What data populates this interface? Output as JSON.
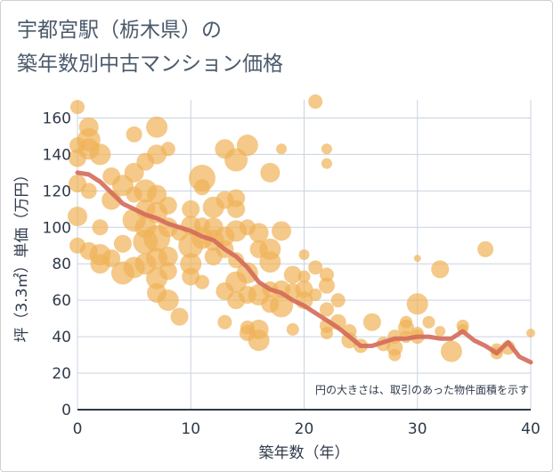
{
  "chart_data": {
    "type": "scatter",
    "title_lines": [
      "宇都宮駅（栃木県）の",
      "築年数別中古マンション価格"
    ],
    "xlabel": "築年数（年）",
    "ylabel": "坪（3.3㎡）単価（万円）",
    "note": "円の大きさは、取引のあった物件面積を示す",
    "xlim": [
      0,
      40
    ],
    "ylim": [
      0,
      170
    ],
    "x_ticks": [
      0,
      10,
      20,
      30,
      40
    ],
    "y_ticks": [
      0,
      20,
      40,
      60,
      80,
      100,
      120,
      140,
      160
    ],
    "grid": true,
    "colors": {
      "bubble": "#f0b257",
      "trend": "#d46a5a",
      "grid": "#c9d3df",
      "axis": "#2f3a4a"
    },
    "points": [
      [
        0,
        166,
        8
      ],
      [
        0,
        145,
        9
      ],
      [
        0,
        138,
        10
      ],
      [
        0,
        124,
        10
      ],
      [
        0,
        106,
        11
      ],
      [
        0,
        90,
        9
      ],
      [
        1,
        155,
        11
      ],
      [
        1,
        148,
        13
      ],
      [
        1,
        143,
        12
      ],
      [
        1,
        120,
        9
      ],
      [
        1,
        87,
        10
      ],
      [
        2,
        140,
        12
      ],
      [
        2,
        85,
        12
      ],
      [
        2,
        80,
        11
      ],
      [
        2,
        100,
        9
      ],
      [
        3,
        128,
        10
      ],
      [
        3,
        115,
        11
      ],
      [
        3,
        83,
        10
      ],
      [
        4,
        123,
        12
      ],
      [
        4,
        91,
        10
      ],
      [
        4,
        75,
        13
      ],
      [
        5,
        151,
        9
      ],
      [
        5,
        130,
        11
      ],
      [
        5,
        118,
        9
      ],
      [
        5,
        104,
        13
      ],
      [
        5,
        78,
        12
      ],
      [
        6,
        136,
        10
      ],
      [
        6,
        120,
        13
      ],
      [
        6,
        110,
        11
      ],
      [
        6,
        100,
        12
      ],
      [
        6,
        92,
        14
      ],
      [
        6,
        80,
        12
      ],
      [
        7,
        155,
        12
      ],
      [
        7,
        140,
        11
      ],
      [
        7,
        118,
        11
      ],
      [
        7,
        108,
        12
      ],
      [
        7,
        94,
        15
      ],
      [
        7,
        83,
        12
      ],
      [
        7,
        72,
        12
      ],
      [
        7,
        64,
        11
      ],
      [
        8,
        143,
        8
      ],
      [
        8,
        112,
        10
      ],
      [
        8,
        100,
        11
      ],
      [
        8,
        84,
        11
      ],
      [
        8,
        76,
        10
      ],
      [
        8,
        60,
        12
      ],
      [
        9,
        97,
        9
      ],
      [
        9,
        51,
        10
      ],
      [
        10,
        110,
        10
      ],
      [
        10,
        101,
        11
      ],
      [
        10,
        90,
        14
      ],
      [
        10,
        80,
        12
      ],
      [
        10,
        73,
        10
      ],
      [
        11,
        127,
        15
      ],
      [
        11,
        122,
        9
      ],
      [
        11,
        101,
        9
      ],
      [
        11,
        94,
        12
      ],
      [
        11,
        70,
        8
      ],
      [
        12,
        111,
        12
      ],
      [
        12,
        100,
        11
      ],
      [
        12,
        93,
        12
      ],
      [
        12,
        84,
        10
      ],
      [
        13,
        143,
        11
      ],
      [
        13,
        115,
        10
      ],
      [
        13,
        95,
        11
      ],
      [
        13,
        88,
        10
      ],
      [
        13,
        65,
        10
      ],
      [
        13,
        48,
        8
      ],
      [
        14,
        137,
        13
      ],
      [
        14,
        116,
        10
      ],
      [
        14,
        110,
        10
      ],
      [
        14,
        98,
        12
      ],
      [
        14,
        82,
        9
      ],
      [
        14,
        70,
        12
      ],
      [
        14,
        60,
        10
      ],
      [
        15,
        145,
        12
      ],
      [
        15,
        100,
        9
      ],
      [
        15,
        75,
        12
      ],
      [
        15,
        63,
        10
      ],
      [
        15,
        45,
        8
      ],
      [
        15,
        42,
        9
      ],
      [
        16,
        97,
        11
      ],
      [
        16,
        88,
        10
      ],
      [
        16,
        63,
        12
      ],
      [
        16,
        44,
        11
      ],
      [
        16,
        38,
        12
      ],
      [
        17,
        130,
        11
      ],
      [
        17,
        88,
        12
      ],
      [
        17,
        81,
        12
      ],
      [
        17,
        66,
        9
      ],
      [
        17,
        58,
        10
      ],
      [
        18,
        143,
        6
      ],
      [
        18,
        98,
        11
      ],
      [
        18,
        66,
        10
      ],
      [
        18,
        57,
        13
      ],
      [
        19,
        74,
        10
      ],
      [
        19,
        65,
        9
      ],
      [
        19,
        44,
        7
      ],
      [
        20,
        85,
        6
      ],
      [
        20,
        73,
        7
      ],
      [
        20,
        66,
        10
      ],
      [
        20,
        60,
        10
      ],
      [
        21,
        169,
        8
      ],
      [
        21,
        78,
        8
      ],
      [
        21,
        63,
        7
      ],
      [
        22,
        143,
        6
      ],
      [
        22,
        135,
        6
      ],
      [
        22,
        74,
        8
      ],
      [
        22,
        68,
        9
      ],
      [
        22,
        55,
        8
      ],
      [
        22,
        46,
        8
      ],
      [
        22,
        42,
        7
      ],
      [
        23,
        60,
        8
      ],
      [
        23,
        48,
        9
      ],
      [
        24,
        43,
        8
      ],
      [
        24,
        38,
        9
      ],
      [
        25,
        35,
        8
      ],
      [
        26,
        48,
        10
      ],
      [
        27,
        36,
        8
      ],
      [
        28,
        40,
        8
      ],
      [
        28,
        34,
        9
      ],
      [
        28,
        30,
        7
      ],
      [
        29,
        48,
        7
      ],
      [
        29,
        45,
        9
      ],
      [
        29,
        40,
        7
      ],
      [
        30,
        83,
        4
      ],
      [
        30,
        58,
        12
      ],
      [
        30,
        42,
        7
      ],
      [
        30,
        40,
        8
      ],
      [
        31,
        48,
        7
      ],
      [
        32,
        77,
        10
      ],
      [
        32,
        43,
        6
      ],
      [
        33,
        32,
        12
      ],
      [
        34,
        46,
        7
      ],
      [
        34,
        44,
        6
      ],
      [
        36,
        88,
        9
      ],
      [
        37,
        31,
        7
      ],
      [
        37,
        33,
        7
      ],
      [
        38,
        34,
        8
      ],
      [
        40,
        42,
        5
      ]
    ],
    "trend": [
      [
        0,
        130
      ],
      [
        1,
        129
      ],
      [
        2,
        125
      ],
      [
        3,
        119
      ],
      [
        4,
        113
      ],
      [
        5,
        110
      ],
      [
        6,
        107
      ],
      [
        7,
        105
      ],
      [
        8,
        102
      ],
      [
        9,
        100
      ],
      [
        10,
        98
      ],
      [
        11,
        95
      ],
      [
        12,
        93
      ],
      [
        13,
        88
      ],
      [
        14,
        84
      ],
      [
        15,
        78
      ],
      [
        16,
        70
      ],
      [
        17,
        66
      ],
      [
        18,
        64
      ],
      [
        19,
        60
      ],
      [
        20,
        57
      ],
      [
        21,
        53
      ],
      [
        22,
        49
      ],
      [
        23,
        45
      ],
      [
        24,
        40
      ],
      [
        25,
        35
      ],
      [
        26,
        35
      ],
      [
        27,
        37
      ],
      [
        28,
        39
      ],
      [
        29,
        39
      ],
      [
        30,
        40
      ],
      [
        31,
        40
      ],
      [
        32,
        39
      ],
      [
        33,
        39
      ],
      [
        34,
        43
      ],
      [
        35,
        38
      ],
      [
        36,
        35
      ],
      [
        37,
        31
      ],
      [
        38,
        37
      ],
      [
        39,
        29
      ],
      [
        40,
        26
      ]
    ]
  }
}
